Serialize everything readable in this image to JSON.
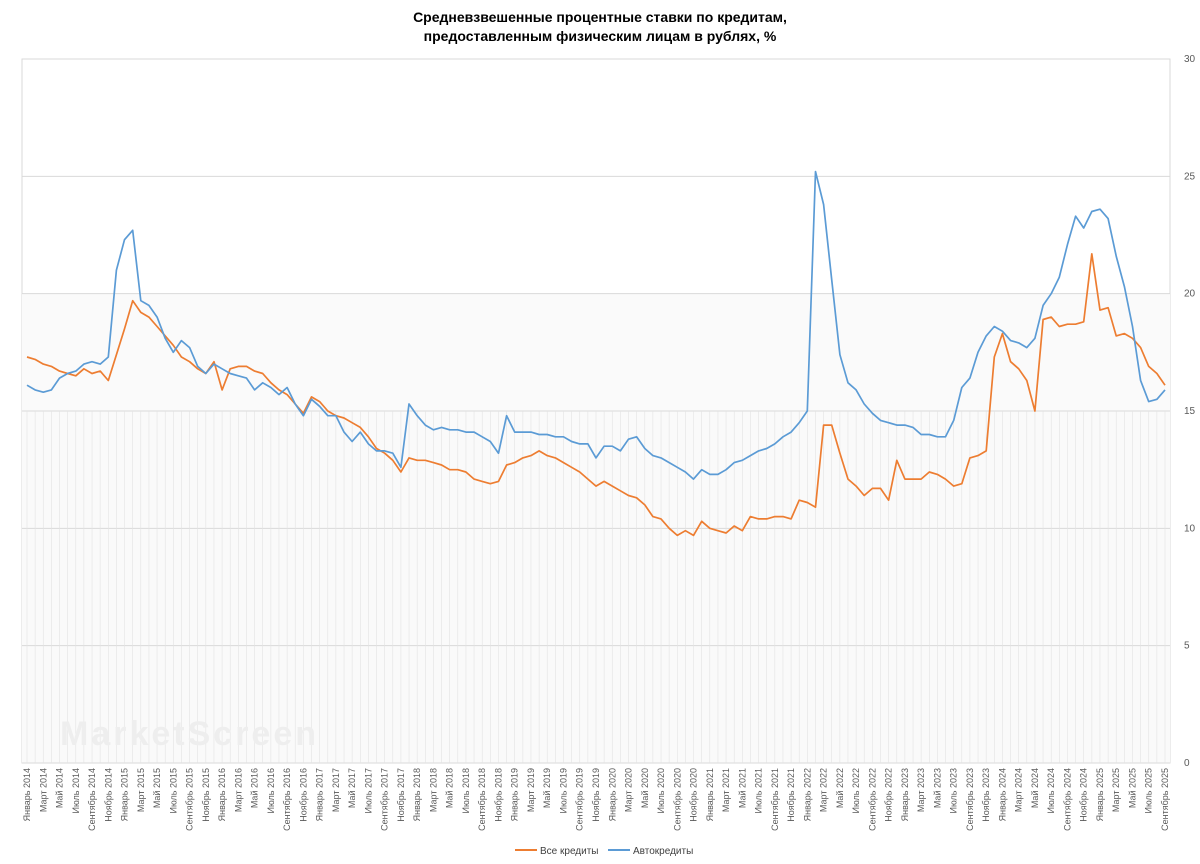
{
  "title": {
    "line1": "Средневзвешенные процентные ставки по кредитам,",
    "line2": "предоставленным физическим лицам в рублях, %"
  },
  "watermark": "MarketScreen",
  "chart_data": {
    "type": "line",
    "title": "Средневзвешенные процентные ставки по кредитам, предоставленным физическим лицам в рублях, %",
    "y_axis_side": "right",
    "ylim": [
      0,
      30
    ],
    "yticks": [
      0,
      5,
      10,
      15,
      20,
      25,
      30
    ],
    "grid": true,
    "legend_position": "bottom",
    "x_start": "2014-01",
    "x_end": "2025-10",
    "x_tick_labels": [
      "Январь 2014",
      "Март 2014",
      "Май 2014",
      "Июль 2014",
      "Сентябрь 2014",
      "Ноябрь 2014",
      "Январь 2015",
      "Март 2015",
      "Май 2015",
      "Июль 2015",
      "Сентябрь 2015",
      "Ноябрь 2015",
      "Январь 2016",
      "Март 2016",
      "Май 2016",
      "Июль 2016",
      "Сентябрь 2016",
      "Ноябрь 2016",
      "Январь 2017",
      "Март 2017",
      "Май 2017",
      "Июль 2017",
      "Сентябрь 2017",
      "Ноябрь 2017",
      "Январь 2018",
      "Март 2018",
      "Май 2018",
      "Июль 2018",
      "Сентябрь 2018",
      "Ноябрь 2018",
      "Январь 2019",
      "Март 2019",
      "Май 2019",
      "Июль 2019",
      "Сентябрь 2019",
      "Ноябрь 2019",
      "Январь 2020",
      "Март 2020",
      "Май 2020",
      "Июль 2020",
      "Сентябрь 2020",
      "Ноябрь 2020",
      "Январь 2021",
      "Март 2021",
      "Май 2021",
      "Июль 2021",
      "Сентябрь 2021",
      "Ноябрь 2021",
      "Январь 2022",
      "Март 2022",
      "Май 2022",
      "Июль 2022",
      "Сентябрь 2022",
      "Ноябрь 2022",
      "Январь 2023",
      "Март 2023",
      "Май 2023",
      "Июль 2023",
      "Сентябрь 2023",
      "Ноябрь 2023",
      "Январь 2024",
      "Март 2024",
      "Май 2024",
      "Июль 2024",
      "Сентябрь 2024",
      "Ноябрь 2024",
      "Январь 2025",
      "Март 2025",
      "Май 2025",
      "Июль 2025",
      "Сентябрь 2025"
    ],
    "series": [
      {
        "name": "Все кредиты",
        "color": "#ED7D31",
        "values": [
          17.3,
          17.2,
          17.0,
          16.9,
          16.7,
          16.6,
          16.5,
          16.8,
          16.6,
          16.7,
          16.3,
          17.4,
          18.5,
          19.7,
          19.2,
          19.0,
          18.6,
          18.2,
          17.8,
          17.3,
          17.1,
          16.8,
          16.6,
          17.1,
          15.9,
          16.8,
          16.9,
          16.9,
          16.7,
          16.6,
          16.2,
          15.9,
          15.7,
          15.3,
          14.9,
          15.6,
          15.4,
          15.0,
          14.8,
          14.7,
          14.5,
          14.3,
          13.9,
          13.4,
          13.2,
          12.9,
          12.4,
          13.0,
          12.9,
          12.9,
          12.8,
          12.7,
          12.5,
          12.5,
          12.4,
          12.1,
          12.0,
          11.9,
          12.0,
          12.7,
          12.8,
          13.0,
          13.1,
          13.3,
          13.1,
          13.0,
          12.8,
          12.6,
          12.4,
          12.1,
          11.8,
          12.0,
          11.8,
          11.6,
          11.4,
          11.3,
          11.0,
          10.5,
          10.4,
          10.0,
          9.7,
          9.9,
          9.7,
          10.3,
          10.0,
          9.9,
          9.8,
          10.1,
          9.9,
          10.5,
          10.4,
          10.4,
          10.5,
          10.5,
          10.4,
          11.2,
          11.1,
          10.9,
          14.4,
          14.4,
          13.2,
          12.1,
          11.8,
          11.4,
          11.7,
          11.7,
          11.2,
          12.9,
          12.1,
          12.1,
          12.1,
          12.4,
          12.3,
          12.1,
          11.8,
          11.9,
          13.0,
          13.1,
          13.3,
          17.3,
          18.3,
          17.1,
          16.8,
          16.3,
          15.0,
          18.9,
          19.0,
          18.6,
          18.7,
          18.7,
          18.8,
          21.7,
          19.3,
          19.4,
          18.2,
          18.3,
          18.1,
          17.7,
          16.9,
          16.6,
          16.1
        ]
      },
      {
        "name": "Автокредиты",
        "color": "#5B9BD5",
        "values": [
          16.1,
          15.9,
          15.8,
          15.9,
          16.4,
          16.6,
          16.7,
          17.0,
          17.1,
          17.0,
          17.3,
          21.0,
          22.3,
          22.7,
          19.7,
          19.5,
          19.0,
          18.1,
          17.5,
          18.0,
          17.7,
          16.9,
          16.6,
          17.0,
          16.8,
          16.6,
          16.5,
          16.4,
          15.9,
          16.2,
          16.0,
          15.7,
          16.0,
          15.3,
          14.8,
          15.5,
          15.2,
          14.8,
          14.8,
          14.1,
          13.7,
          14.1,
          13.6,
          13.3,
          13.3,
          13.2,
          12.6,
          15.3,
          14.8,
          14.4,
          14.2,
          14.3,
          14.2,
          14.2,
          14.1,
          14.1,
          13.9,
          13.7,
          13.2,
          14.8,
          14.1,
          14.1,
          14.1,
          14.0,
          14.0,
          13.9,
          13.9,
          13.7,
          13.6,
          13.6,
          13.0,
          13.5,
          13.5,
          13.3,
          13.8,
          13.9,
          13.4,
          13.1,
          13.0,
          12.8,
          12.6,
          12.4,
          12.1,
          12.5,
          12.3,
          12.3,
          12.5,
          12.8,
          12.9,
          13.1,
          13.3,
          13.4,
          13.6,
          13.9,
          14.1,
          14.5,
          15.0,
          25.2,
          23.8,
          20.6,
          17.4,
          16.2,
          15.9,
          15.3,
          14.9,
          14.6,
          14.5,
          14.4,
          14.4,
          14.3,
          14.0,
          14.0,
          13.9,
          13.9,
          14.6,
          16.0,
          16.4,
          17.5,
          18.2,
          18.6,
          18.4,
          18.0,
          17.9,
          17.7,
          18.1,
          19.5,
          20.0,
          20.7,
          22.1,
          23.3,
          22.8,
          23.5,
          23.6,
          23.2,
          21.6,
          20.3,
          18.6,
          16.3,
          15.4,
          15.5,
          15.9
        ]
      }
    ]
  },
  "legend": {
    "item1": "Все кредиты",
    "item2": "Автокредиты"
  }
}
